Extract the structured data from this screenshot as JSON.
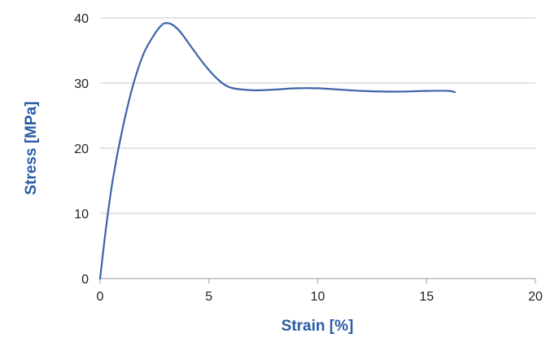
{
  "chart_data": {
    "type": "line",
    "xlabel": "Strain [%]",
    "ylabel": "Stress [MPa]",
    "xlim": [
      0,
      20
    ],
    "ylim": [
      0,
      40
    ],
    "xticks": [
      0,
      5,
      10,
      15,
      20
    ],
    "yticks": [
      0,
      10,
      20,
      30,
      40
    ],
    "grid": "horizontal",
    "colors": {
      "line": "#3d63a8",
      "axis_title": "#2a5ba5",
      "grid": "#c8c8c8",
      "axis": "#9a9a9a"
    },
    "series": [
      {
        "x": [
          0,
          0.3,
          0.6,
          1.0,
          1.5,
          2.0,
          2.5,
          2.8,
          3.0,
          3.3,
          3.7,
          4.2,
          4.8,
          5.4,
          6.0,
          7.0,
          8.0,
          9.0,
          10.0,
          11.0,
          12.0,
          13.0,
          14.0,
          15.0,
          16.0,
          16.3
        ],
        "y": [
          0,
          8.5,
          15.5,
          22.5,
          29.5,
          34.5,
          37.5,
          38.8,
          39.2,
          39.0,
          37.8,
          35.5,
          32.8,
          30.6,
          29.3,
          28.9,
          29.0,
          29.2,
          29.2,
          29.0,
          28.8,
          28.7,
          28.7,
          28.8,
          28.8,
          28.6
        ]
      }
    ]
  }
}
